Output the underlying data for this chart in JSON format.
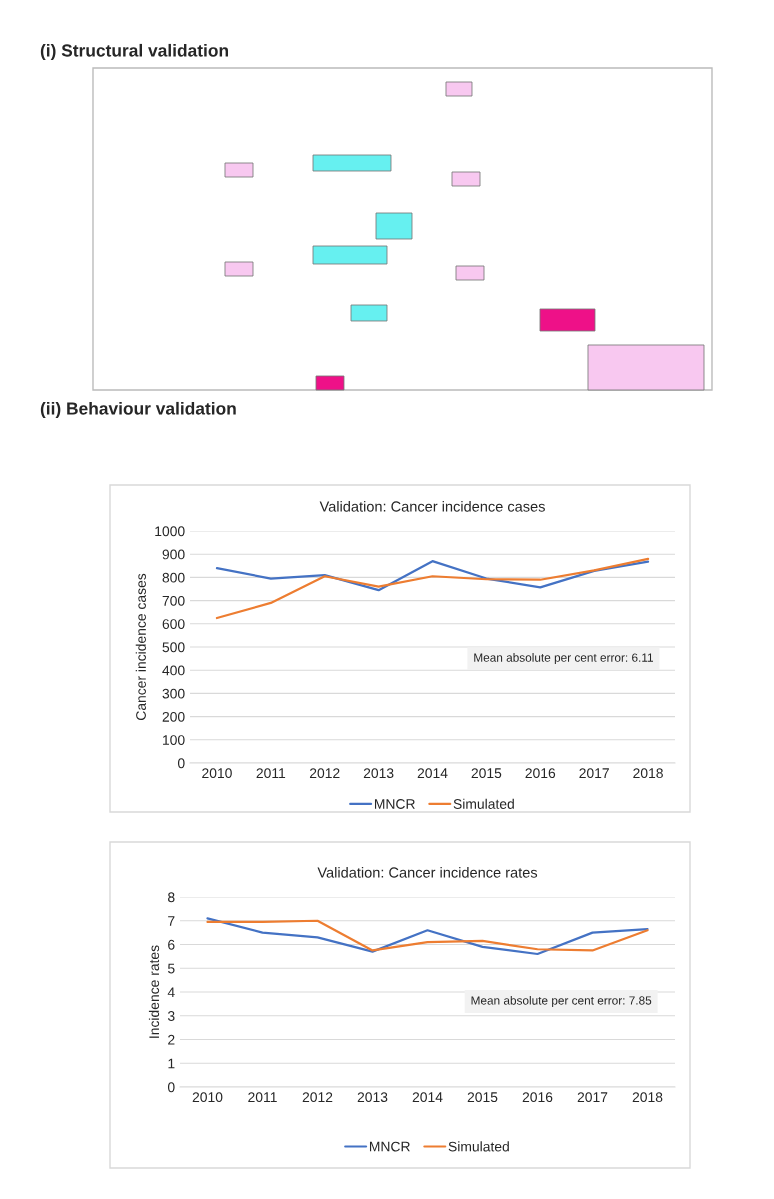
{
  "chart_data": [
    {
      "type": "line",
      "title": "Validation: Cancer incidence cases",
      "ylabel": "Cancer incidence cases",
      "categories": [
        "2010",
        "2011",
        "2012",
        "2013",
        "2014",
        "2015",
        "2016",
        "2017",
        "2018"
      ],
      "series": [
        {
          "name": "MNCR",
          "color": "#4472c4",
          "values": [
            840,
            795,
            810,
            745,
            870,
            795,
            757,
            828,
            868
          ]
        },
        {
          "name": "Simulated",
          "color": "#ed7d31",
          "values": [
            625,
            690,
            805,
            760,
            805,
            792,
            790,
            830,
            880
          ]
        }
      ],
      "ylim": [
        0,
        1000
      ],
      "yticks": [
        0,
        100,
        200,
        300,
        400,
        500,
        600,
        700,
        800,
        900,
        1000
      ],
      "grid": "y",
      "legend": "bottom",
      "annotations": [
        "(i) Structural validation",
        "(ii) Behaviour validation",
        "Mean absolute per cent error: 6.11"
      ]
    },
    {
      "type": "line",
      "title": "Validation: Cancer incidence rates",
      "ylabel": "Incidence rates",
      "categories": [
        "2010",
        "2011",
        "2012",
        "2013",
        "2014",
        "2015",
        "2016",
        "2017",
        "2018"
      ],
      "series": [
        {
          "name": "MNCR",
          "color": "#4472c4",
          "values": [
            7.1,
            6.5,
            6.3,
            5.7,
            6.6,
            5.9,
            5.6,
            6.5,
            6.65
          ]
        },
        {
          "name": "Simulated",
          "color": "#ed7d31",
          "values": [
            6.95,
            6.95,
            7.0,
            5.75,
            6.1,
            6.15,
            5.8,
            5.75,
            6.6
          ]
        }
      ],
      "ylim": [
        0,
        8
      ],
      "yticks": [
        0,
        1,
        2,
        3,
        4,
        5,
        6,
        7,
        8
      ],
      "grid": "y",
      "legend": "bottom",
      "annotations": [
        "Mean absolute per cent error: 7.85"
      ]
    }
  ]
}
